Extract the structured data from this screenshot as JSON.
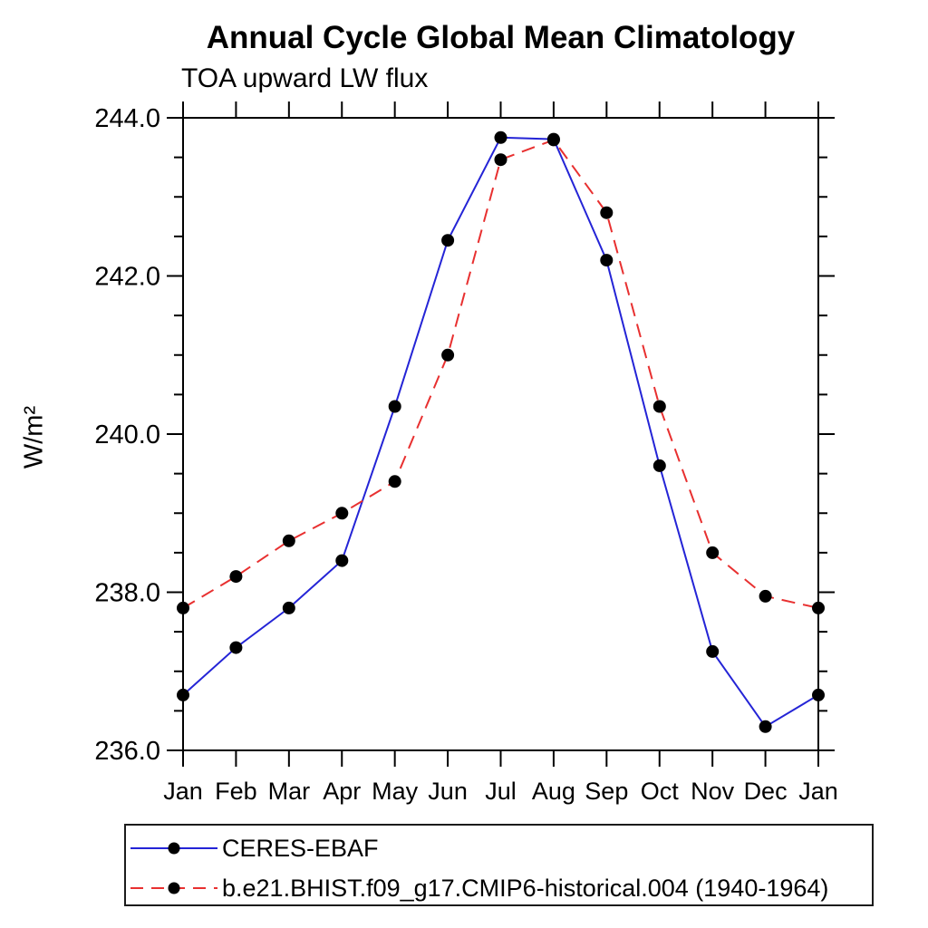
{
  "title": "Annual Cycle Global Mean Climatology",
  "subtitle": "TOA upward LW flux",
  "ylabel": "W/m²",
  "colors": {
    "axis": "#000000",
    "marker": "#000000",
    "ceres_line": "#2424d6",
    "model_line": "#e83030"
  },
  "legend": {
    "entries": [
      {
        "label": "CERES-EBAF",
        "style": "solid",
        "color": "#2424d6"
      },
      {
        "label": "b.e21.BHIST.f09_g17.CMIP6-historical.004 (1940-1964)",
        "style": "dashed",
        "color": "#e83030"
      }
    ]
  },
  "chart_data": {
    "type": "line",
    "title": "Annual Cycle Global Mean Climatology",
    "subtitle": "TOA upward LW flux",
    "xlabel": "",
    "ylabel": "W/m²",
    "categories": [
      "Jan",
      "Feb",
      "Mar",
      "Apr",
      "May",
      "Jun",
      "Jul",
      "Aug",
      "Sep",
      "Oct",
      "Nov",
      "Dec",
      "Jan"
    ],
    "series": [
      {
        "name": "CERES-EBAF",
        "style": "solid",
        "color": "#2424d6",
        "marker": "filled-circle",
        "values": [
          236.7,
          237.3,
          237.8,
          238.4,
          240.35,
          242.45,
          243.75,
          243.73,
          242.2,
          239.6,
          237.25,
          236.3,
          236.7
        ]
      },
      {
        "name": "b.e21.BHIST.f09_g17.CMIP6-historical.004 (1940-1964)",
        "style": "dashed",
        "color": "#e83030",
        "marker": "filled-circle",
        "values": [
          237.8,
          238.2,
          238.65,
          239.0,
          239.4,
          241.0,
          243.47,
          243.72,
          242.8,
          240.35,
          238.5,
          237.95,
          237.8
        ]
      }
    ],
    "ylim": [
      236.0,
      244.0
    ],
    "ytick_major": 2.0,
    "ytick_minor": 0.5,
    "ytick_label_format": "one-decimal",
    "grid": false,
    "legend_position": "bottom-left-box"
  }
}
